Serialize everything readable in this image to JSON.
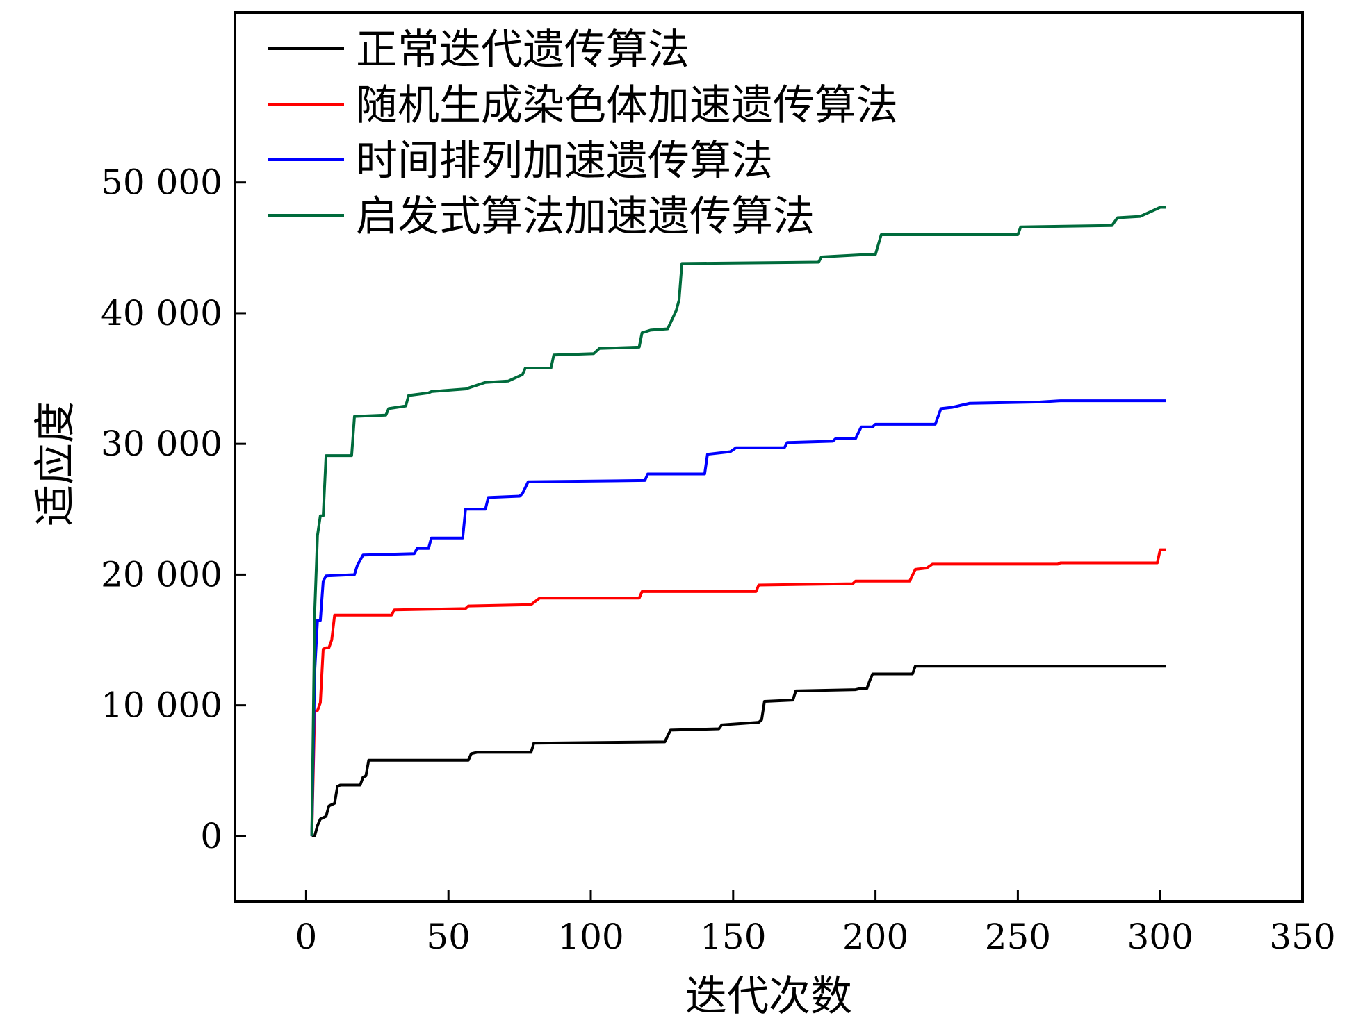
{
  "chart_data": {
    "type": "line",
    "title": "",
    "xlabel": "迭代次数",
    "ylabel": "适应度",
    "xlim": [
      -25,
      350
    ],
    "ylim": [
      -5000,
      63000
    ],
    "xticks": [
      0,
      50,
      100,
      150,
      200,
      250,
      300,
      350
    ],
    "xtick_labels": [
      "0",
      "50",
      "100",
      "150",
      "200",
      "250",
      "300",
      "350"
    ],
    "yticks": [
      0,
      10000,
      20000,
      30000,
      40000,
      50000
    ],
    "ytick_labels": [
      "0",
      "10 000",
      "20 000",
      "30 000",
      "40 000",
      "50 000"
    ],
    "grid": false,
    "legend_position": "top-left",
    "series": [
      {
        "name": "正常迭代遗传算法",
        "color": "#000000",
        "points": [
          [
            2,
            0
          ],
          [
            3,
            0
          ],
          [
            4,
            800
          ],
          [
            5,
            1300
          ],
          [
            7,
            1500
          ],
          [
            8,
            2300
          ],
          [
            10,
            2500
          ],
          [
            11,
            3800
          ],
          [
            12,
            3900
          ],
          [
            19,
            3900
          ],
          [
            20,
            4500
          ],
          [
            21,
            4600
          ],
          [
            22,
            5800
          ],
          [
            57,
            5800
          ],
          [
            58,
            6300
          ],
          [
            60,
            6400
          ],
          [
            79,
            6400
          ],
          [
            80,
            7100
          ],
          [
            126,
            7200
          ],
          [
            128,
            8100
          ],
          [
            145,
            8200
          ],
          [
            146,
            8500
          ],
          [
            159,
            8700
          ],
          [
            160,
            8900
          ],
          [
            161,
            10300
          ],
          [
            171,
            10400
          ],
          [
            172,
            11100
          ],
          [
            193,
            11200
          ],
          [
            195,
            11300
          ],
          [
            197,
            11300
          ],
          [
            198,
            11900
          ],
          [
            199,
            12400
          ],
          [
            213,
            12400
          ],
          [
            214,
            13000
          ],
          [
            302,
            13000
          ]
        ]
      },
      {
        "name": "随机生成染色体加速遗传算法",
        "color": "#ff0000",
        "points": [
          [
            2,
            0
          ],
          [
            3,
            9500
          ],
          [
            4,
            9600
          ],
          [
            5,
            10200
          ],
          [
            6,
            14300
          ],
          [
            7,
            14400
          ],
          [
            8,
            14400
          ],
          [
            9,
            15000
          ],
          [
            10,
            16900
          ],
          [
            30,
            16900
          ],
          [
            31,
            17300
          ],
          [
            56,
            17400
          ],
          [
            57,
            17600
          ],
          [
            79,
            17700
          ],
          [
            82,
            18200
          ],
          [
            117,
            18200
          ],
          [
            118,
            18700
          ],
          [
            158,
            18700
          ],
          [
            159,
            19200
          ],
          [
            192,
            19300
          ],
          [
            193,
            19500
          ],
          [
            212,
            19500
          ],
          [
            214,
            20400
          ],
          [
            218,
            20500
          ],
          [
            220,
            20800
          ],
          [
            264,
            20800
          ],
          [
            265,
            20900
          ],
          [
            299,
            20900
          ],
          [
            300,
            21900
          ],
          [
            302,
            21900
          ]
        ]
      },
      {
        "name": "时间排列加速遗传算法",
        "color": "#0000ff",
        "points": [
          [
            2,
            0
          ],
          [
            3,
            12500
          ],
          [
            4,
            16500
          ],
          [
            5,
            16500
          ],
          [
            6,
            19500
          ],
          [
            7,
            19900
          ],
          [
            17,
            20000
          ],
          [
            18,
            20700
          ],
          [
            20,
            21500
          ],
          [
            38,
            21600
          ],
          [
            39,
            22000
          ],
          [
            43,
            22000
          ],
          [
            44,
            22800
          ],
          [
            55,
            22800
          ],
          [
            56,
            25000
          ],
          [
            63,
            25000
          ],
          [
            64,
            25900
          ],
          [
            75,
            26000
          ],
          [
            76,
            26200
          ],
          [
            78,
            27100
          ],
          [
            119,
            27200
          ],
          [
            120,
            27700
          ],
          [
            140,
            27700
          ],
          [
            141,
            29200
          ],
          [
            149,
            29400
          ],
          [
            151,
            29700
          ],
          [
            168,
            29700
          ],
          [
            169,
            30100
          ],
          [
            185,
            30200
          ],
          [
            186,
            30400
          ],
          [
            193,
            30400
          ],
          [
            195,
            31300
          ],
          [
            199,
            31300
          ],
          [
            200,
            31500
          ],
          [
            221,
            31500
          ],
          [
            223,
            32700
          ],
          [
            227,
            32800
          ],
          [
            233,
            33100
          ],
          [
            258,
            33200
          ],
          [
            265,
            33300
          ],
          [
            302,
            33300
          ]
        ]
      },
      {
        "name": "启发式算法加速遗传算法",
        "color": "#006b3c",
        "points": [
          [
            2,
            0
          ],
          [
            3,
            17000
          ],
          [
            4,
            23000
          ],
          [
            5,
            24500
          ],
          [
            6,
            24500
          ],
          [
            7,
            29100
          ],
          [
            16,
            29100
          ],
          [
            17,
            32100
          ],
          [
            28,
            32200
          ],
          [
            29,
            32700
          ],
          [
            35,
            32900
          ],
          [
            36,
            33700
          ],
          [
            43,
            33900
          ],
          [
            44,
            34000
          ],
          [
            56,
            34200
          ],
          [
            63,
            34700
          ],
          [
            71,
            34800
          ],
          [
            76,
            35300
          ],
          [
            77,
            35800
          ],
          [
            86,
            35800
          ],
          [
            87,
            36800
          ],
          [
            101,
            36900
          ],
          [
            103,
            37300
          ],
          [
            117,
            37400
          ],
          [
            118,
            38500
          ],
          [
            121,
            38700
          ],
          [
            127,
            38800
          ],
          [
            130,
            40200
          ],
          [
            131,
            41000
          ],
          [
            132,
            43800
          ],
          [
            180,
            43900
          ],
          [
            181,
            44300
          ],
          [
            198,
            44500
          ],
          [
            200,
            44500
          ],
          [
            202,
            46000
          ],
          [
            250,
            46000
          ],
          [
            251,
            46600
          ],
          [
            283,
            46700
          ],
          [
            285,
            47300
          ],
          [
            293,
            47400
          ],
          [
            300,
            48100
          ],
          [
            302,
            48100
          ]
        ]
      }
    ]
  }
}
